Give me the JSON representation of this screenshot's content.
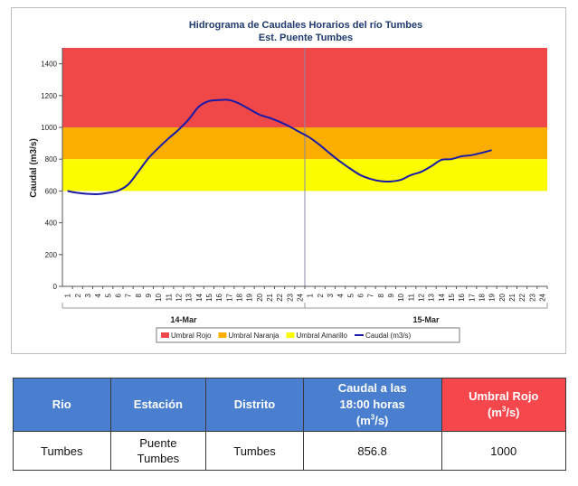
{
  "chart_data": {
    "type": "line",
    "title": "Hidrograma de Caudales Horarios del río Tumbes",
    "subtitle": "Est. Puente Tumbes",
    "ylabel": "Caudal  (m3/s)",
    "ylim": [
      0,
      1500
    ],
    "yticks": [
      0,
      200,
      400,
      600,
      800,
      1000,
      1200,
      1400
    ],
    "x_tick_labels": [
      "1",
      "2",
      "3",
      "4",
      "5",
      "6",
      "7",
      "8",
      "9",
      "10",
      "11",
      "12",
      "13",
      "14",
      "15",
      "16",
      "17",
      "18",
      "19",
      "20",
      "21",
      "22",
      "23",
      "24"
    ],
    "days": [
      "14-Mar",
      "15-Mar"
    ],
    "thresholds": [
      {
        "name": "Umbral Rojo",
        "from": 1000,
        "to": 1500,
        "color": "#f04848"
      },
      {
        "name": "Umbral Naranja",
        "from": 800,
        "to": 1000,
        "color": "#fcae00"
      },
      {
        "name": "Umbral Amarillo",
        "from": 600,
        "to": 800,
        "color": "#fcfc00"
      }
    ],
    "series": [
      {
        "name": "Caudal (m3/s)",
        "color": "#1a1aa8",
        "values": [
          600,
          588,
          582,
          580,
          588,
          602,
          640,
          720,
          805,
          870,
          930,
          985,
          1050,
          1130,
          1165,
          1172,
          1172,
          1150,
          1115,
          1080,
          1060,
          1035,
          1005,
          970,
          935,
          888,
          835,
          785,
          740,
          700,
          676,
          662,
          660,
          670,
          700,
          720,
          755,
          795,
          800,
          818,
          825,
          840,
          856.8
        ]
      }
    ],
    "legend": [
      "Umbral Rojo",
      "Umbral Naranja",
      "Umbral Amarillo",
      "Caudal (m3/s)"
    ],
    "legend_position": "bottom",
    "grid": false
  },
  "table": {
    "headers": {
      "rio": "Rio",
      "estacion": "Estación",
      "distrito": "Distrito",
      "caudal_l1": "Caudal a las",
      "caudal_l2": "18:00 horas",
      "caudal_l3a": "(m",
      "caudal_sup": "3",
      "caudal_l3b": "/s)",
      "umbral_l1": "Umbral Rojo",
      "umbral_l2a": "(m",
      "umbral_sup": "3",
      "umbral_l2b": "/s)"
    },
    "row": {
      "rio": "Tumbes",
      "estacion_l1": "Puente",
      "estacion_l2": "Tumbes",
      "distrito": "Tumbes",
      "caudal": "856.8",
      "umbral": "1000"
    },
    "colors": {
      "header_blue": "#4a7fd0",
      "header_red": "#f6474c"
    }
  }
}
